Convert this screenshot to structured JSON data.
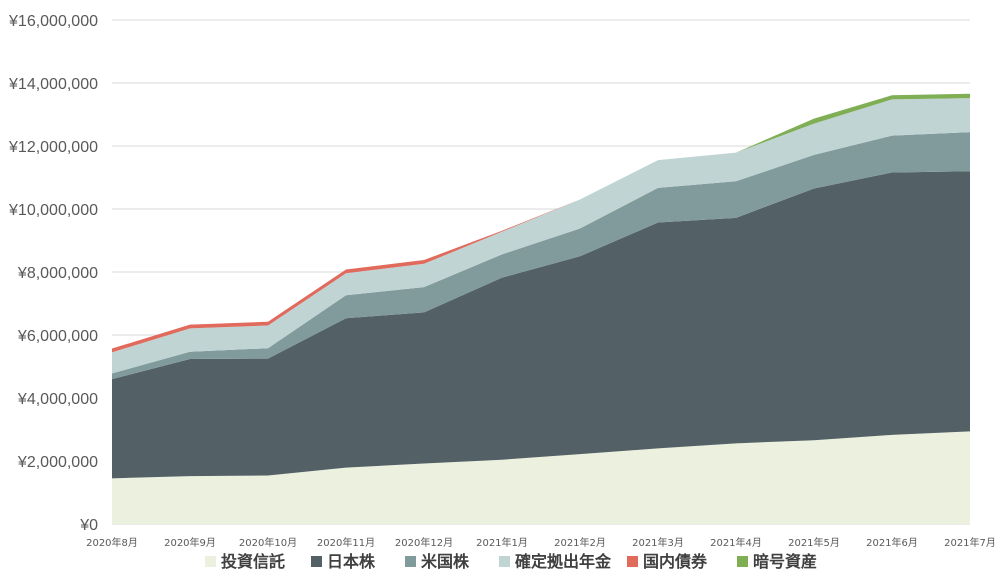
{
  "chart_data": {
    "type": "area",
    "stacked": true,
    "categories": [
      "2020年8月",
      "2020年9月",
      "2020年10月",
      "2020年11月",
      "2020年12月",
      "2021年1月",
      "2021年2月",
      "2021年3月",
      "2021年4月",
      "2021年5月",
      "2021年6月",
      "2021年7月"
    ],
    "ylim": [
      0,
      16000000
    ],
    "yticks": [
      0,
      2000000,
      4000000,
      6000000,
      8000000,
      10000000,
      12000000,
      14000000,
      16000000
    ],
    "ytick_labels": [
      "¥0",
      "¥2,000,000",
      "¥4,000,000",
      "¥6,000,000",
      "¥8,000,000",
      "¥10,000,000",
      "¥12,000,000",
      "¥14,000,000",
      "¥16,000,000"
    ],
    "grid": true,
    "legend_position": "bottom",
    "series": [
      {
        "name": "投資信託",
        "color": "#ebf1de",
        "values": [
          1450000,
          1520000,
          1540000,
          1790000,
          1920000,
          2040000,
          2220000,
          2400000,
          2560000,
          2660000,
          2830000,
          2940000
        ]
      },
      {
        "name": "日本株",
        "color": "#536166",
        "values": [
          3150000,
          3720000,
          3710000,
          4740000,
          4800000,
          5780000,
          6280000,
          7170000,
          7160000,
          7990000,
          8330000,
          8260000
        ]
      },
      {
        "name": "米国株",
        "color": "#819b9c",
        "values": [
          180000,
          230000,
          330000,
          730000,
          800000,
          740000,
          880000,
          1100000,
          1160000,
          1070000,
          1170000,
          1240000
        ]
      },
      {
        "name": "確定拠出年金",
        "color": "#c0d4d4",
        "values": [
          670000,
          740000,
          720000,
          700000,
          740000,
          720000,
          920000,
          880000,
          910000,
          990000,
          1150000,
          1080000
        ]
      },
      {
        "name": "国内債券",
        "color": "#e06b5c",
        "values": [
          120000,
          120000,
          120000,
          120000,
          120000,
          30000,
          0,
          0,
          0,
          0,
          0,
          0
        ]
      },
      {
        "name": "暗号資産",
        "color": "#7fae55",
        "values": [
          0,
          0,
          0,
          0,
          0,
          0,
          0,
          0,
          0,
          160000,
          130000,
          140000
        ]
      }
    ]
  }
}
